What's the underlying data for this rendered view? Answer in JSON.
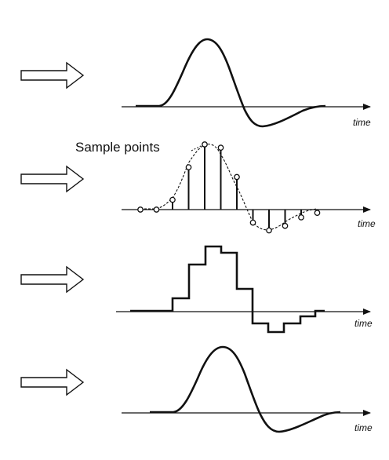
{
  "panels": [
    {
      "id": "analog",
      "axis_label": "time"
    },
    {
      "id": "sampled",
      "axis_label": "time",
      "annotation": "Sample points"
    },
    {
      "id": "quantized",
      "axis_label": "time"
    },
    {
      "id": "reconstructed",
      "axis_label": "time"
    }
  ],
  "sample_values": [
    0,
    0,
    0.15,
    0.65,
    1.0,
    0.95,
    0.5,
    -0.2,
    -0.32,
    -0.25,
    -0.12,
    -0.05
  ],
  "colors": {
    "stroke": "#111111",
    "background": "#ffffff"
  },
  "icons": {
    "step_marker": "right-arrow-icon"
  }
}
